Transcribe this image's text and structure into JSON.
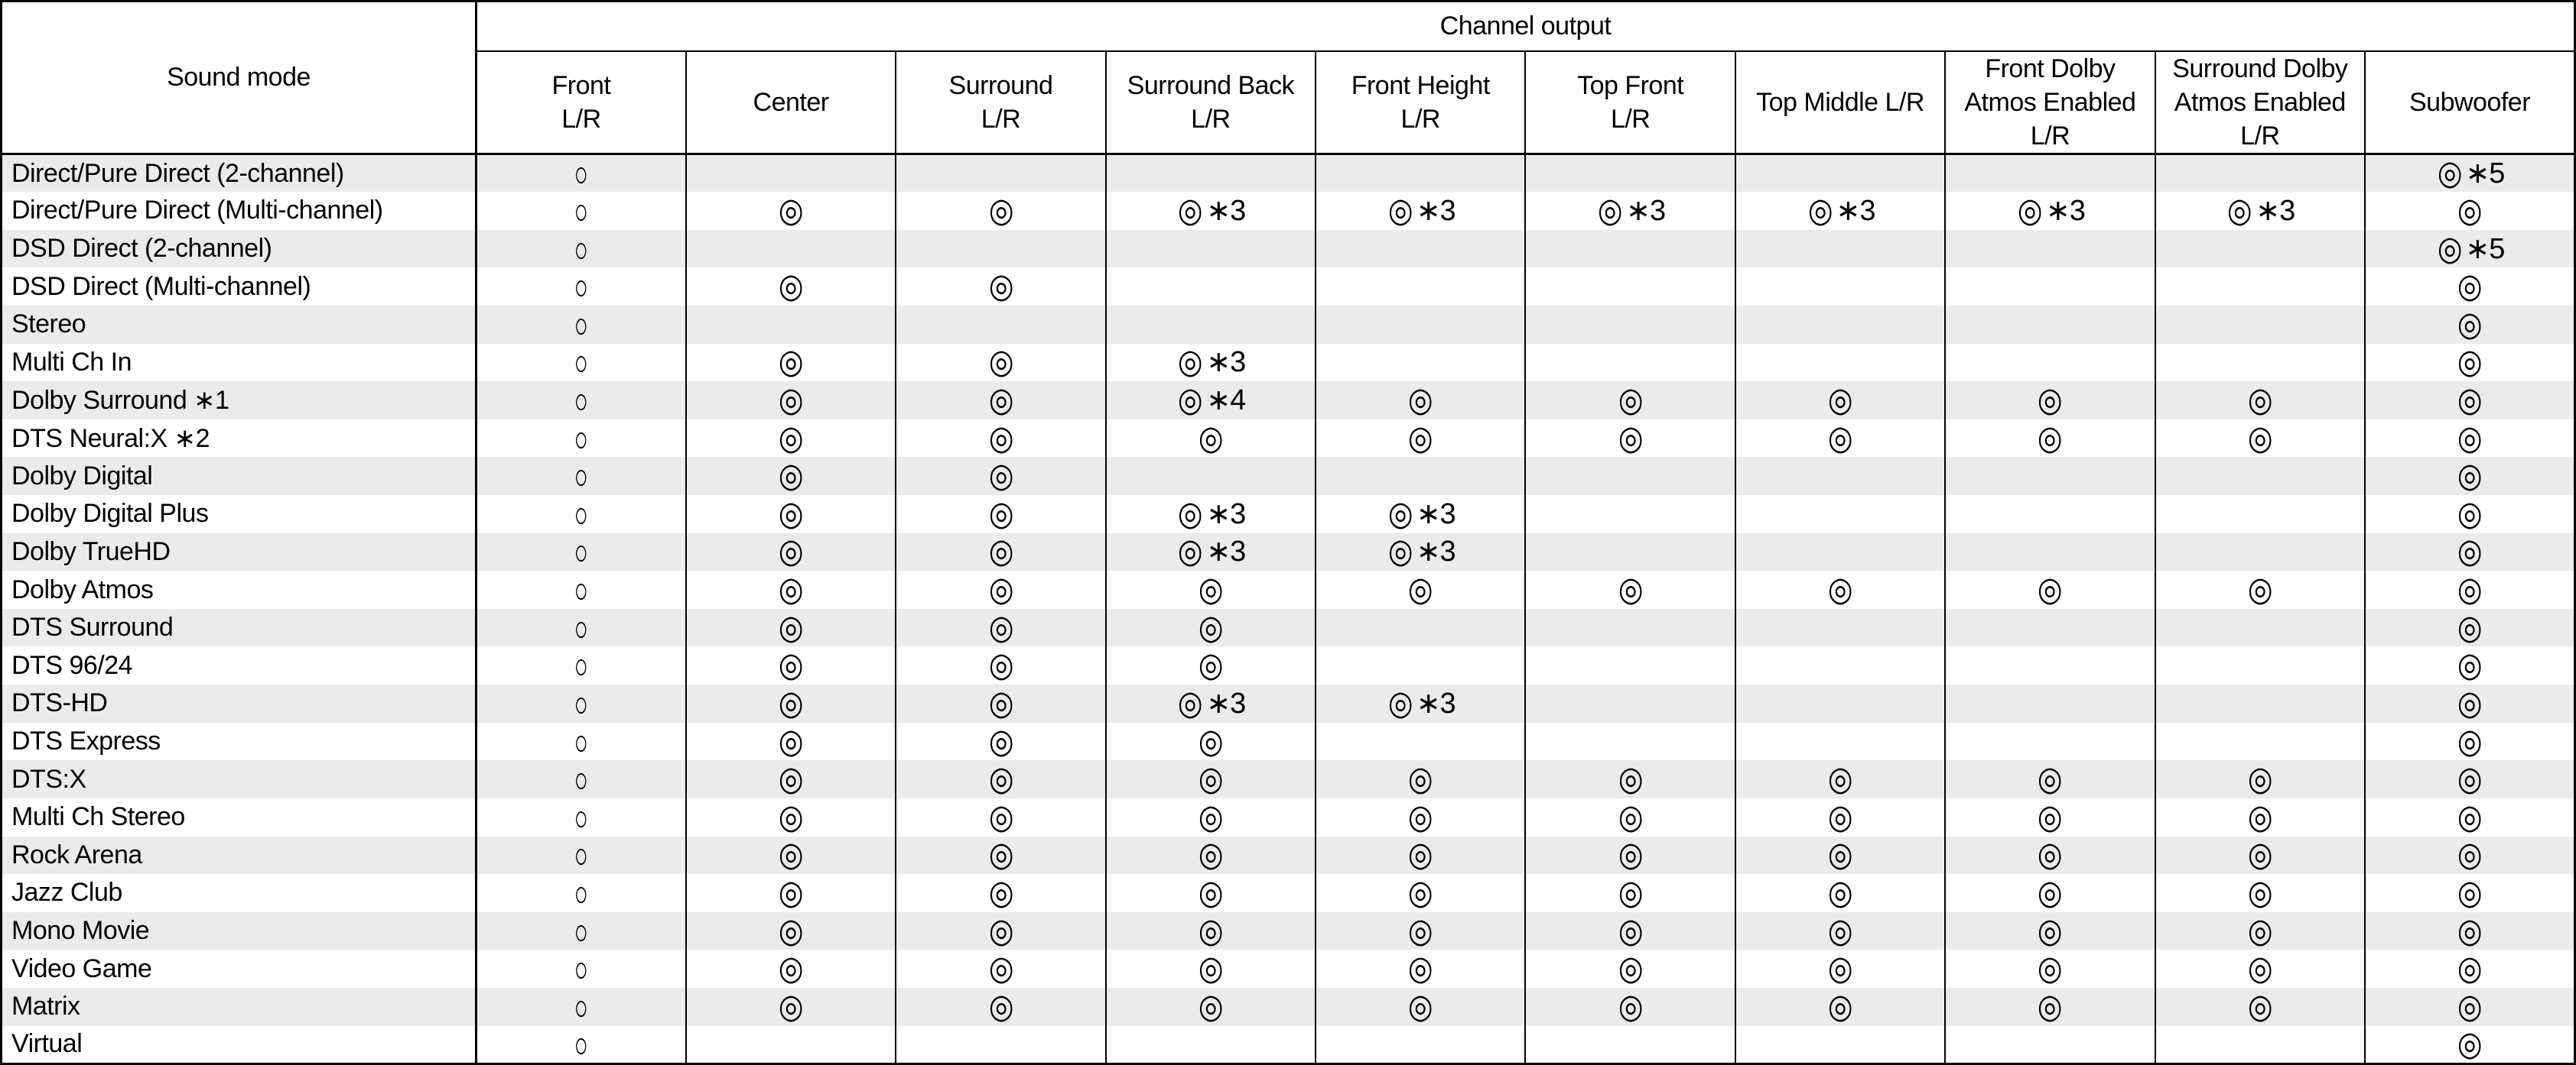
{
  "colors": {
    "stripe": "#ebebeb",
    "grid": "#000000",
    "background": "#ffffff"
  },
  "table": {
    "row_header": "Sound mode",
    "group_header": "Channel output",
    "columns": [
      "Front\nL/R",
      "Center",
      "Surround\nL/R",
      "Surround Back\nL/R",
      "Front Height\nL/R",
      "Top Front\nL/R",
      "Top Middle L/R",
      "Front Dolby\nAtmos Enabled\nL/R",
      "Surround Dolby\nAtmos Enabled\nL/R",
      "Subwoofer"
    ],
    "symbols": {
      "single_circle": "○",
      "double_circle": "◎"
    },
    "rows": [
      {
        "mode": "Direct/Pure Direct (2-channel)",
        "cells": [
          "○",
          "",
          "",
          "",
          "",
          "",
          "",
          "",
          "",
          "◎∗5"
        ]
      },
      {
        "mode": "Direct/Pure Direct (Multi-channel)",
        "cells": [
          "○",
          "◎",
          "◎",
          "◎∗3",
          "◎∗3",
          "◎∗3",
          "◎∗3",
          "◎∗3",
          "◎∗3",
          "◎"
        ]
      },
      {
        "mode": "DSD Direct (2-channel)",
        "cells": [
          "○",
          "",
          "",
          "",
          "",
          "",
          "",
          "",
          "",
          "◎∗5"
        ]
      },
      {
        "mode": "DSD Direct (Multi-channel)",
        "cells": [
          "○",
          "◎",
          "◎",
          "",
          "",
          "",
          "",
          "",
          "",
          "◎"
        ]
      },
      {
        "mode": "Stereo",
        "cells": [
          "○",
          "",
          "",
          "",
          "",
          "",
          "",
          "",
          "",
          "◎"
        ]
      },
      {
        "mode": "Multi Ch In",
        "cells": [
          "○",
          "◎",
          "◎",
          "◎∗3",
          "",
          "",
          "",
          "",
          "",
          "◎"
        ]
      },
      {
        "mode": "Dolby Surround ∗1",
        "cells": [
          "○",
          "◎",
          "◎",
          "◎∗4",
          "◎",
          "◎",
          "◎",
          "◎",
          "◎",
          "◎"
        ]
      },
      {
        "mode": "DTS Neural:X ∗2",
        "cells": [
          "○",
          "◎",
          "◎",
          "◎",
          "◎",
          "◎",
          "◎",
          "◎",
          "◎",
          "◎"
        ]
      },
      {
        "mode": "Dolby Digital",
        "cells": [
          "○",
          "◎",
          "◎",
          "",
          "",
          "",
          "",
          "",
          "",
          "◎"
        ]
      },
      {
        "mode": "Dolby Digital Plus",
        "cells": [
          "○",
          "◎",
          "◎",
          "◎∗3",
          "◎∗3",
          "",
          "",
          "",
          "",
          "◎"
        ]
      },
      {
        "mode": "Dolby TrueHD",
        "cells": [
          "○",
          "◎",
          "◎",
          "◎∗3",
          "◎∗3",
          "",
          "",
          "",
          "",
          "◎"
        ]
      },
      {
        "mode": "Dolby Atmos",
        "cells": [
          "○",
          "◎",
          "◎",
          "◎",
          "◎",
          "◎",
          "◎",
          "◎",
          "◎",
          "◎"
        ]
      },
      {
        "mode": "DTS Surround",
        "cells": [
          "○",
          "◎",
          "◎",
          "◎",
          "",
          "",
          "",
          "",
          "",
          "◎"
        ]
      },
      {
        "mode": "DTS 96/24",
        "cells": [
          "○",
          "◎",
          "◎",
          "◎",
          "",
          "",
          "",
          "",
          "",
          "◎"
        ]
      },
      {
        "mode": "DTS-HD",
        "cells": [
          "○",
          "◎",
          "◎",
          "◎∗3",
          "◎∗3",
          "",
          "",
          "",
          "",
          "◎"
        ]
      },
      {
        "mode": "DTS Express",
        "cells": [
          "○",
          "◎",
          "◎",
          "◎",
          "",
          "",
          "",
          "",
          "",
          "◎"
        ]
      },
      {
        "mode": "DTS:X",
        "cells": [
          "○",
          "◎",
          "◎",
          "◎",
          "◎",
          "◎",
          "◎",
          "◎",
          "◎",
          "◎"
        ]
      },
      {
        "mode": "Multi Ch Stereo",
        "cells": [
          "○",
          "◎",
          "◎",
          "◎",
          "◎",
          "◎",
          "◎",
          "◎",
          "◎",
          "◎"
        ]
      },
      {
        "mode": "Rock Arena",
        "cells": [
          "○",
          "◎",
          "◎",
          "◎",
          "◎",
          "◎",
          "◎",
          "◎",
          "◎",
          "◎"
        ]
      },
      {
        "mode": "Jazz Club",
        "cells": [
          "○",
          "◎",
          "◎",
          "◎",
          "◎",
          "◎",
          "◎",
          "◎",
          "◎",
          "◎"
        ]
      },
      {
        "mode": "Mono Movie",
        "cells": [
          "○",
          "◎",
          "◎",
          "◎",
          "◎",
          "◎",
          "◎",
          "◎",
          "◎",
          "◎"
        ]
      },
      {
        "mode": "Video Game",
        "cells": [
          "○",
          "◎",
          "◎",
          "◎",
          "◎",
          "◎",
          "◎",
          "◎",
          "◎",
          "◎"
        ]
      },
      {
        "mode": "Matrix",
        "cells": [
          "○",
          "◎",
          "◎",
          "◎",
          "◎",
          "◎",
          "◎",
          "◎",
          "◎",
          "◎"
        ]
      },
      {
        "mode": "Virtual",
        "cells": [
          "○",
          "",
          "",
          "",
          "",
          "",
          "",
          "",
          "",
          "◎"
        ]
      }
    ]
  }
}
